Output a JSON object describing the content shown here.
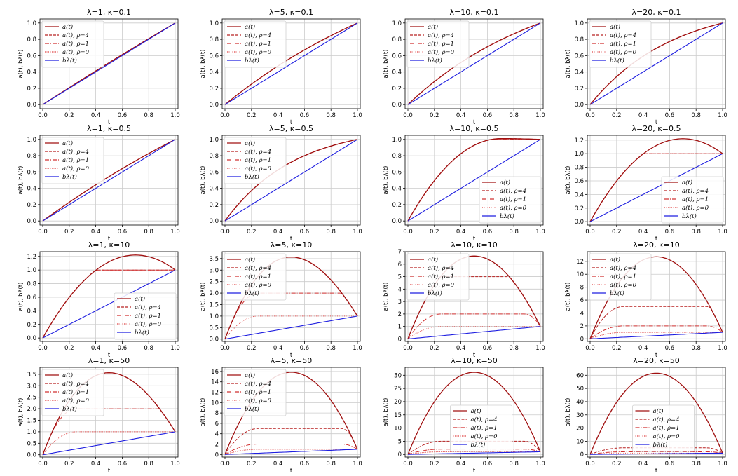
{
  "legend_labels": {
    "a": "a(t)",
    "a_rho4": "a(t), ρ=4",
    "a_rho1": "a(t), ρ=1",
    "a_rho0": "a(t), ρ=0",
    "b": "bλ(t)"
  },
  "colors": {
    "a": "#a01010",
    "a_rho4": "#b82020",
    "a_rho1": "#d03030",
    "a_rho0": "#e04848",
    "b": "#1f1fe0",
    "grid": "#cccccc",
    "axis": "#000000"
  },
  "chart_data": [
    {
      "type": "line",
      "title": "λ=1, κ=0.1",
      "xlabel": "t",
      "ylabel": "a(t), bλ(t)",
      "xlim": [
        0,
        1
      ],
      "ylim": [
        -0.05,
        1.05
      ],
      "yticks": [
        "0.0",
        "0.2",
        "0.4",
        "0.6",
        "0.8",
        "1.0"
      ],
      "ytick_values": [
        0,
        0.2,
        0.4,
        0.6,
        0.8,
        1.0
      ],
      "xticks": [
        "0.0",
        "0.2",
        "0.4",
        "0.6",
        "0.8",
        "1.0"
      ],
      "peak": 1.0,
      "plateau": [
        1.0,
        1.0,
        1.0
      ],
      "bend": 0.1,
      "legend": "top-left"
    },
    {
      "type": "line",
      "title": "λ=5, κ=0.1",
      "xlabel": "t",
      "ylabel": "a(t), bλ(t)",
      "xlim": [
        0,
        1
      ],
      "ylim": [
        -0.05,
        1.05
      ],
      "yticks": [
        "0.0",
        "0.2",
        "0.4",
        "0.6",
        "0.8",
        "1.0"
      ],
      "ytick_values": [
        0,
        0.2,
        0.4,
        0.6,
        0.8,
        1.0
      ],
      "xticks": [
        "0.0",
        "0.2",
        "0.4",
        "0.6",
        "0.8",
        "1.0"
      ],
      "peak": 1.0,
      "plateau": [
        1.0,
        1.0,
        1.0
      ],
      "bend": 0.6,
      "legend": "top-left"
    },
    {
      "type": "line",
      "title": "λ=10, κ=0.1",
      "xlabel": "t",
      "ylabel": "a(t), bλ(t)",
      "xlim": [
        0,
        1
      ],
      "ylim": [
        -0.05,
        1.05
      ],
      "yticks": [
        "0.0",
        "0.2",
        "0.4",
        "0.6",
        "0.8",
        "1.0"
      ],
      "ytick_values": [
        0,
        0.2,
        0.4,
        0.6,
        0.8,
        1.0
      ],
      "xticks": [
        "0.0",
        "0.2",
        "0.4",
        "0.6",
        "0.8",
        "1.0"
      ],
      "peak": 1.0,
      "plateau": [
        1.0,
        1.0,
        1.0
      ],
      "bend": 0.95,
      "legend": "top-left"
    },
    {
      "type": "line",
      "title": "λ=20, κ=0.1",
      "xlabel": "t",
      "ylabel": "a(t), bλ(t)",
      "xlim": [
        0,
        1
      ],
      "ylim": [
        -0.05,
        1.05
      ],
      "yticks": [
        "0.0",
        "0.2",
        "0.4",
        "0.6",
        "0.8",
        "1.0"
      ],
      "ytick_values": [
        0,
        0.2,
        0.4,
        0.6,
        0.8,
        1.0
      ],
      "xticks": [
        "0.0",
        "0.2",
        "0.4",
        "0.6",
        "0.8",
        "1.0"
      ],
      "peak": 1.0,
      "plateau": [
        1.0,
        1.0,
        1.0
      ],
      "bend": 1.6,
      "legend": "top-left"
    },
    {
      "type": "line",
      "title": "λ=1, κ=0.5",
      "xlabel": "t",
      "ylabel": "a(t), bλ(t)",
      "xlim": [
        0,
        1
      ],
      "ylim": [
        -0.05,
        1.05
      ],
      "yticks": [
        "0.0",
        "0.2",
        "0.4",
        "0.6",
        "0.8",
        "1.0"
      ],
      "ytick_values": [
        0,
        0.2,
        0.4,
        0.6,
        0.8,
        1.0
      ],
      "xticks": [
        "0.0",
        "0.2",
        "0.4",
        "0.6",
        "0.8",
        "1.0"
      ],
      "peak": 1.0,
      "plateau": [
        1.0,
        1.0,
        1.0
      ],
      "bend": 0.35,
      "legend": "top-left"
    },
    {
      "type": "line",
      "title": "λ=5, κ=0.5",
      "xlabel": "t",
      "ylabel": "a(t), bλ(t)",
      "xlim": [
        0,
        1
      ],
      "ylim": [
        -0.05,
        1.05
      ],
      "yticks": [
        "0.0",
        "0.2",
        "0.4",
        "0.6",
        "0.8",
        "1.0"
      ],
      "ytick_values": [
        0,
        0.2,
        0.4,
        0.6,
        0.8,
        1.0
      ],
      "xticks": [
        "0.0",
        "0.2",
        "0.4",
        "0.6",
        "0.8",
        "1.0"
      ],
      "peak": 1.0,
      "plateau": [
        1.0,
        1.0,
        1.0
      ],
      "bend": 1.9,
      "legend": "top-left"
    },
    {
      "type": "line",
      "title": "λ=10, κ=0.5",
      "xlabel": "t",
      "ylabel": "a(t), bλ(t)",
      "xlim": [
        0,
        1
      ],
      "ylim": [
        -0.05,
        1.05
      ],
      "yticks": [
        "0.0",
        "0.2",
        "0.4",
        "0.6",
        "0.8",
        "1.0"
      ],
      "ytick_values": [
        0,
        0.2,
        0.4,
        0.6,
        0.8,
        1.0
      ],
      "xticks": [
        "0.0",
        "0.2",
        "0.4",
        "0.6",
        "0.8",
        "1.0"
      ],
      "peak": 1.01,
      "plateau": [
        1.0,
        1.0,
        1.0
      ],
      "bend": 0,
      "legend": "bottom-right"
    },
    {
      "type": "line",
      "title": "λ=20, κ=0.5",
      "xlabel": "t",
      "ylabel": "a(t), bλ(t)",
      "xlim": [
        0,
        1
      ],
      "ylim": [
        -0.05,
        1.27
      ],
      "yticks": [
        "0.0",
        "0.2",
        "0.4",
        "0.6",
        "0.8",
        "1.0",
        "1.2"
      ],
      "ytick_values": [
        0,
        0.2,
        0.4,
        0.6,
        0.8,
        1.0,
        1.2
      ],
      "xticks": [
        "0.0",
        "0.2",
        "0.4",
        "0.6",
        "0.8",
        "1.0"
      ],
      "peak": 1.22,
      "plateau": [
        1.0,
        1.0,
        1.0
      ],
      "bend": 0,
      "legend": "bottom-right"
    },
    {
      "type": "line",
      "title": "λ=1, κ=10",
      "xlabel": "t",
      "ylabel": "a(t), bλ(t)",
      "xlim": [
        0,
        1
      ],
      "ylim": [
        -0.05,
        1.27
      ],
      "yticks": [
        "0.0",
        "0.2",
        "0.4",
        "0.6",
        "0.8",
        "1.0",
        "1.2"
      ],
      "ytick_values": [
        0,
        0.2,
        0.4,
        0.6,
        0.8,
        1.0,
        1.2
      ],
      "xticks": [
        "0.0",
        "0.2",
        "0.4",
        "0.6",
        "0.8",
        "1.0"
      ],
      "peak": 1.22,
      "plateau": [
        1.0,
        1.0,
        1.0
      ],
      "bend": 0,
      "legend": "bottom-right"
    },
    {
      "type": "line",
      "title": "λ=5, κ=10",
      "xlabel": "t",
      "ylabel": "a(t), bλ(t)",
      "xlim": [
        0,
        1
      ],
      "ylim": [
        -0.1,
        3.8
      ],
      "yticks": [
        "0.0",
        "0.5",
        "1.0",
        "1.5",
        "2.0",
        "2.5",
        "3.0",
        "3.5"
      ],
      "ytick_values": [
        0,
        0.5,
        1.0,
        1.5,
        2.0,
        2.5,
        3.0,
        3.5
      ],
      "xticks": [
        "0.0",
        "0.2",
        "0.4",
        "0.6",
        "0.8",
        "1.0"
      ],
      "peak": 3.62,
      "plateau": [
        3.62,
        2.0,
        1.0
      ],
      "bend": 0,
      "legend": "top-left"
    },
    {
      "type": "line",
      "title": "λ=10, κ=10",
      "xlabel": "t",
      "ylabel": "a(t), bλ(t)",
      "xlim": [
        0,
        1
      ],
      "ylim": [
        -0.2,
        7.0
      ],
      "yticks": [
        "0",
        "1",
        "2",
        "3",
        "4",
        "5",
        "6",
        "7"
      ],
      "ytick_values": [
        0,
        1,
        2,
        3,
        4,
        5,
        6,
        7
      ],
      "xticks": [
        "0.0",
        "0.2",
        "0.4",
        "0.6",
        "0.8",
        "1.0"
      ],
      "peak": 6.75,
      "plateau": [
        5.0,
        2.0,
        1.0
      ],
      "bend": 0,
      "legend": "top-left"
    },
    {
      "type": "line",
      "title": "λ=20, κ=10",
      "xlabel": "t",
      "ylabel": "a(t), bλ(t)",
      "xlim": [
        0,
        1
      ],
      "ylim": [
        -0.4,
        13.5
      ],
      "yticks": [
        "0",
        "2",
        "4",
        "6",
        "8",
        "10",
        "12"
      ],
      "ytick_values": [
        0,
        2,
        4,
        6,
        8,
        10,
        12
      ],
      "xticks": [
        "0.0",
        "0.2",
        "0.4",
        "0.6",
        "0.8",
        "1.0"
      ],
      "peak": 12.9,
      "plateau": [
        5.0,
        2.0,
        1.0
      ],
      "bend": 0,
      "legend": "top-left"
    },
    {
      "type": "line",
      "title": "λ=1, κ=50",
      "xlabel": "t",
      "ylabel": "a(t), bλ(t)",
      "xlim": [
        0,
        1
      ],
      "ylim": [
        -0.1,
        3.8
      ],
      "yticks": [
        "0.0",
        "0.5",
        "1.0",
        "1.5",
        "2.0",
        "2.5",
        "3.0",
        "3.5"
      ],
      "ytick_values": [
        0,
        0.5,
        1.0,
        1.5,
        2.0,
        2.5,
        3.0,
        3.5
      ],
      "xticks": [
        "0.0",
        "0.2",
        "0.4",
        "0.6",
        "0.8",
        "1.0"
      ],
      "peak": 3.62,
      "plateau": [
        3.62,
        2.0,
        1.0
      ],
      "bend": 0,
      "legend": "top-left"
    },
    {
      "type": "line",
      "title": "λ=5, κ=50",
      "xlabel": "t",
      "ylabel": "a(t), bλ(t)",
      "xlim": [
        0,
        1
      ],
      "ylim": [
        -0.5,
        16.8
      ],
      "yticks": [
        "0",
        "2",
        "4",
        "6",
        "8",
        "10",
        "12",
        "14",
        "16"
      ],
      "ytick_values": [
        0,
        2,
        4,
        6,
        8,
        10,
        12,
        14,
        16
      ],
      "xticks": [
        "0.0",
        "0.2",
        "0.4",
        "0.6",
        "0.8",
        "1.0"
      ],
      "peak": 16.1,
      "plateau": [
        5.0,
        2.0,
        1.0
      ],
      "bend": 0,
      "legend": "top-left"
    },
    {
      "type": "line",
      "title": "λ=10, κ=50",
      "xlabel": "t",
      "ylabel": "a(t), bλ(t)",
      "xlim": [
        0,
        1
      ],
      "ylim": [
        -1,
        33
      ],
      "yticks": [
        "0",
        "5",
        "10",
        "15",
        "20",
        "25",
        "30"
      ],
      "ytick_values": [
        0,
        5,
        10,
        15,
        20,
        25,
        30
      ],
      "xticks": [
        "0.0",
        "0.2",
        "0.4",
        "0.6",
        "0.8",
        "1.0"
      ],
      "peak": 31.6,
      "plateau": [
        5.0,
        2.0,
        1.0
      ],
      "bend": 0,
      "legend": "center"
    },
    {
      "type": "line",
      "title": "λ=20, κ=50",
      "xlabel": "t",
      "ylabel": "a(t), bλ(t)",
      "xlim": [
        0,
        1
      ],
      "ylim": [
        -2,
        66
      ],
      "yticks": [
        "0",
        "10",
        "20",
        "30",
        "40",
        "50",
        "60"
      ],
      "ytick_values": [
        0,
        10,
        20,
        30,
        40,
        50,
        60
      ],
      "xticks": [
        "0.0",
        "0.2",
        "0.4",
        "0.6",
        "0.8",
        "1.0"
      ],
      "peak": 62.5,
      "plateau": [
        5.0,
        2.0,
        1.0
      ],
      "bend": 0,
      "legend": "center"
    }
  ]
}
